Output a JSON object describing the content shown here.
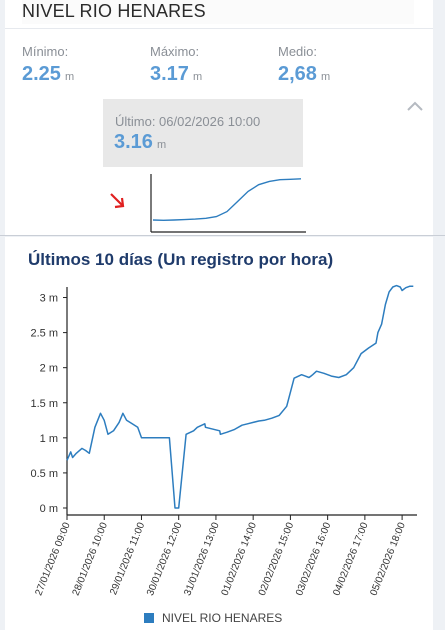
{
  "header": {
    "title": "NIVEL RIO HENARES"
  },
  "stats": {
    "min": {
      "label": "Mínimo:",
      "value": "2.25",
      "unit": "m"
    },
    "max": {
      "label": "Máximo:",
      "value": "3.17",
      "unit": "m"
    },
    "avg": {
      "label": "Medio:",
      "value": "2,68",
      "unit": "m"
    }
  },
  "last": {
    "label": "Último: 06/02/2026 10:00",
    "value": "3.16",
    "unit": "m"
  },
  "icons": {
    "collapse": "chevron-up-icon",
    "trend": "arrow-down-right-icon"
  },
  "colors": {
    "accent": "#5b9bd5",
    "title": "#1f3b6b",
    "series": "#2d7dbf",
    "trend_arrow": "#e02020"
  },
  "chart_title": "Últimos 10 días (Un registro por hora)",
  "chart_data": {
    "type": "line",
    "title": "Últimos 10 días (Un registro por hora)",
    "y_tick_labels": [
      "0 m",
      "0.5 m",
      "1 m",
      "1.5 m",
      "2 m",
      "2.5 m",
      "3 m"
    ],
    "y_ticks": [
      0,
      0.5,
      1,
      1.5,
      2,
      2.5,
      3
    ],
    "ylim": [
      -0.1,
      3.15
    ],
    "xlim": [
      0,
      9.4
    ],
    "x_tick_labels": [
      "27/01/2026 09:00",
      "28/01/2026 10:00",
      "29/01/2026 11:00",
      "30/01/2026 12:00",
      "31/01/2026 13:00",
      "01/02/2026 14:00",
      "02/02/2026 15:00",
      "03/02/2026 16:00",
      "04/02/2026 17:00",
      "05/02/2026 18:00"
    ],
    "x_ticks": [
      0,
      1,
      2,
      3,
      4,
      5,
      6,
      7,
      8,
      9
    ],
    "grid": false,
    "legend_position": "bottom",
    "series": [
      {
        "name": "NIVEL RIO HENARES",
        "x": [
          0,
          0.1,
          0.15,
          0.25,
          0.4,
          0.5,
          0.6,
          0.75,
          0.9,
          1.0,
          1.1,
          1.25,
          1.4,
          1.5,
          1.6,
          1.75,
          1.9,
          2.0,
          2.1,
          2.25,
          2.4,
          2.5,
          2.6,
          2.75,
          2.9,
          3.0,
          3.2,
          3.4,
          3.5,
          3.7,
          3.72,
          4.1,
          4.12,
          4.3,
          4.5,
          4.7,
          4.85,
          5.0,
          5.15,
          5.3,
          5.5,
          5.7,
          5.9,
          6.1,
          6.3,
          6.4,
          6.5,
          6.55,
          6.6,
          6.7,
          6.9,
          7.1,
          7.3,
          7.5,
          7.7,
          7.9,
          8.1,
          8.3,
          8.35,
          8.45,
          8.55,
          8.65,
          8.75,
          8.85,
          8.95,
          9.0,
          9.1,
          9.2,
          9.3
        ],
        "values": [
          0.68,
          0.8,
          0.72,
          0.78,
          0.85,
          0.82,
          0.78,
          1.15,
          1.35,
          1.25,
          1.05,
          1.1,
          1.22,
          1.35,
          1.25,
          1.2,
          1.15,
          1.0,
          1.0,
          1.0,
          1.0,
          1.0,
          1.0,
          1.0,
          0.0,
          0.0,
          1.05,
          1.1,
          1.15,
          1.2,
          1.15,
          1.1,
          1.05,
          1.08,
          1.12,
          1.18,
          1.2,
          1.22,
          1.24,
          1.25,
          1.28,
          1.32,
          1.45,
          1.85,
          1.9,
          1.88,
          1.86,
          1.88,
          1.9,
          1.95,
          1.92,
          1.88,
          1.86,
          1.9,
          2.0,
          2.2,
          2.28,
          2.35,
          2.5,
          2.62,
          2.9,
          3.08,
          3.15,
          3.17,
          3.15,
          3.1,
          3.14,
          3.16,
          3.16
        ]
      }
    ]
  },
  "mini_chart": {
    "values": [
      0.3,
      0.28,
      0.3,
      0.32,
      0.35,
      0.4,
      0.5,
      0.8,
      1.4,
      2.0,
      2.4,
      2.6,
      2.7,
      2.72,
      2.75
    ]
  }
}
